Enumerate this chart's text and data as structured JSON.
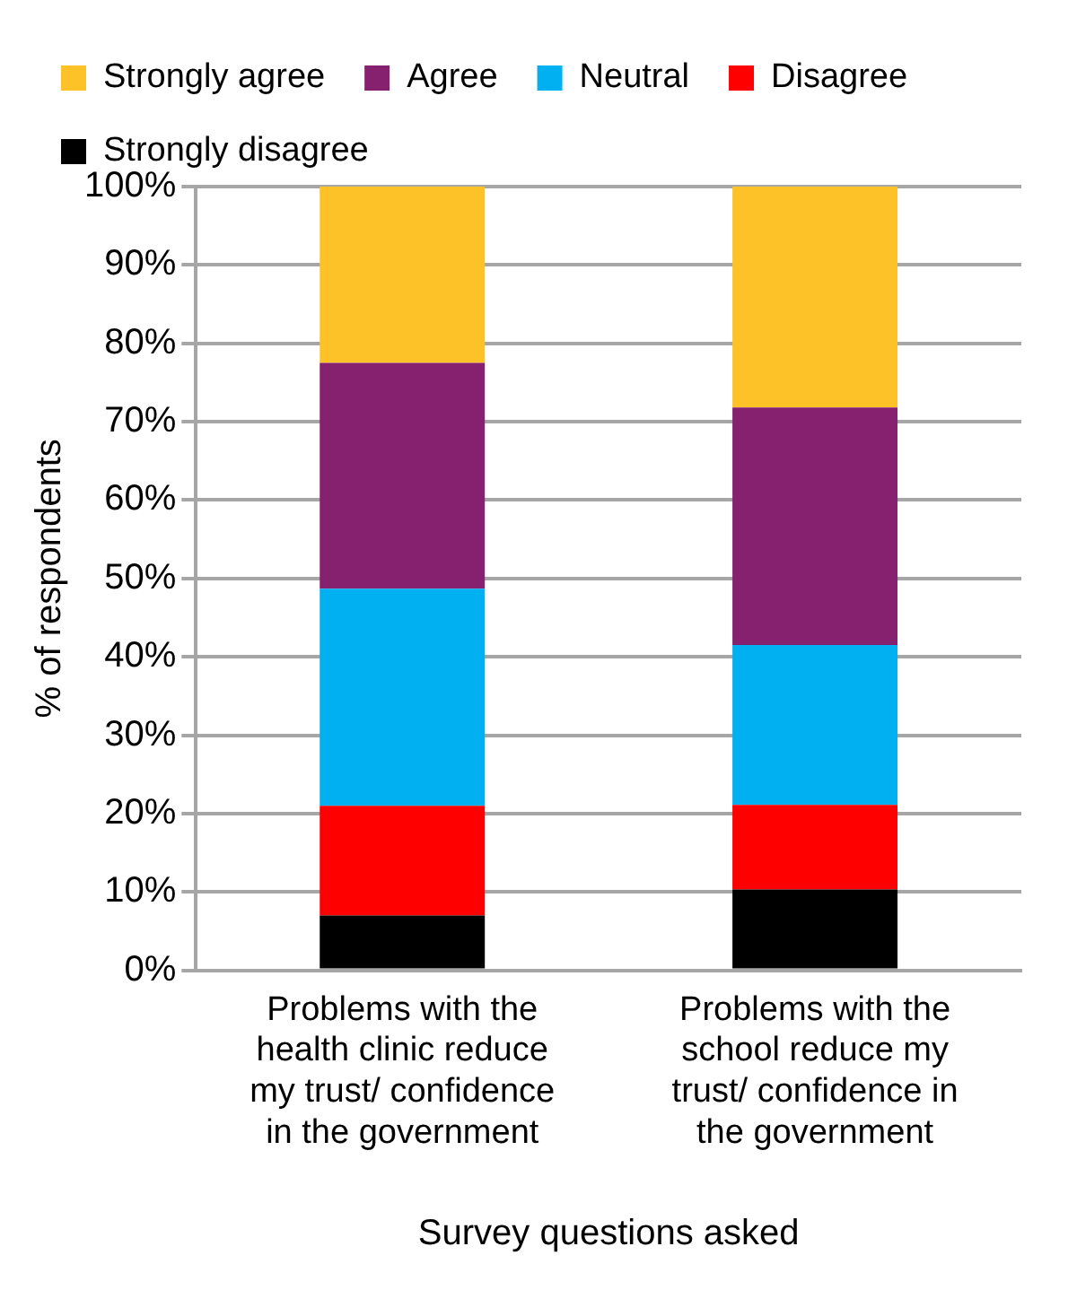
{
  "chart_data": {
    "type": "bar",
    "stacked": true,
    "categories": [
      "Problems with the health clinic reduce my trust/ confidence in the government",
      "Problems with the school reduce my trust/ confidence in the government"
    ],
    "series": [
      {
        "name": "Strongly disagree",
        "color": "#000000",
        "values": [
          7,
          10.3
        ]
      },
      {
        "name": "Disagree",
        "color": "#ff0000",
        "values": [
          14,
          10.8
        ]
      },
      {
        "name": "Neutral",
        "color": "#00b0f0",
        "values": [
          27.7,
          20.4
        ]
      },
      {
        "name": "Agree",
        "color": "#862170",
        "values": [
          28.8,
          30.3
        ]
      },
      {
        "name": "Strongly agree",
        "color": "#fdc227",
        "values": [
          22.5,
          28.2
        ]
      }
    ],
    "xlabel": "Survey questions asked",
    "ylabel": "% of respondents",
    "ylim": [
      0,
      100
    ],
    "yticks": [
      {
        "value": 0,
        "label": "0%"
      },
      {
        "value": 10,
        "label": "10%"
      },
      {
        "value": 20,
        "label": "20%"
      },
      {
        "value": 30,
        "label": "30%"
      },
      {
        "value": 40,
        "label": "40%"
      },
      {
        "value": 50,
        "label": "50%"
      },
      {
        "value": 60,
        "label": "60%"
      },
      {
        "value": 70,
        "label": "70%"
      },
      {
        "value": 80,
        "label": "80%"
      },
      {
        "value": 90,
        "label": "90%"
      },
      {
        "value": 100,
        "label": "100%"
      }
    ],
    "grid": "y",
    "legend": "top"
  }
}
